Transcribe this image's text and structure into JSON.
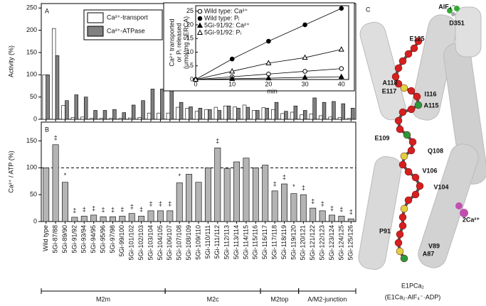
{
  "chart_data": [
    {
      "type": "bar",
      "panel": "A",
      "ylabel": "Activity   (%)",
      "ylim": [
        0,
        260
      ],
      "yticks": [
        0,
        50,
        100,
        150,
        200,
        250
      ],
      "series": [
        {
          "name": "Ca²⁺-transport",
          "color": "#ffffff",
          "values": [
            100,
            204,
            31,
            4,
            5,
            2,
            2,
            2,
            2,
            3,
            4,
            14,
            14,
            14,
            27,
            25,
            18,
            22,
            27,
            30,
            28,
            32,
            20,
            26,
            22,
            13,
            16,
            10,
            12,
            8,
            5,
            4,
            2
          ]
        },
        {
          "name": "Ca²⁺-ATPase",
          "color": "#808080",
          "values": [
            100,
            143,
            42,
            55,
            50,
            20,
            20,
            22,
            15,
            32,
            42,
            68,
            68,
            68,
            38,
            28,
            25,
            22,
            20,
            30,
            25,
            27,
            20,
            25,
            38,
            18,
            30,
            20,
            48,
            38,
            40,
            35,
            25
          ]
        }
      ]
    },
    {
      "type": "bar",
      "panel": "B",
      "ylabel": "Ca²⁺ / ATP  (%)",
      "ylim": [
        0,
        185
      ],
      "yticks": [
        0,
        50,
        100,
        150
      ],
      "reference_line": 100,
      "color": "#b4b4b4",
      "categories": [
        "Wild type",
        "5Gi-87/88",
        "5Gi-89/90",
        "5Gi-91/92",
        "5Gi-93/94",
        "5Gi-94/95",
        "5Gi-95/96",
        "5Gi-97/98",
        "5Gi-99/100",
        "5Gi-101/102",
        "5Gi-102/103",
        "5Gi-103/104",
        "5Gi-104/105",
        "5Gi-106/107",
        "5Gi-107/108",
        "5Gi-108/109",
        "5Gi-109/110",
        "5Gi-110/111",
        "5Gi-111/112",
        "5Gi-112/113",
        "5Gi-113/114",
        "5Gi-114/115",
        "5Gi-115/116",
        "5Gi-116/117",
        "5Gi-117/118",
        "5Gi-118/119",
        "5Gi-119/120",
        "5Gi-120/121",
        "5Gi-121/122",
        "5Gi-122/123",
        "5Gi-123/124",
        "5Gi-124/125",
        "5Gi-125/126"
      ],
      "values": [
        100,
        143,
        73,
        8,
        10,
        12,
        9,
        9,
        10,
        15,
        10,
        20,
        20,
        20,
        72,
        88,
        73,
        100,
        137,
        99,
        111,
        118,
        100,
        105,
        57,
        70,
        52,
        50,
        25,
        20,
        12,
        10,
        5
      ],
      "markers": [
        null,
        "‡",
        "*",
        "‡",
        "‡",
        "‡",
        "‡",
        "‡",
        "‡",
        "‡",
        "‡",
        "‡",
        "‡",
        "‡",
        "*",
        null,
        null,
        null,
        "‡",
        null,
        null,
        null,
        null,
        null,
        "‡",
        "‡",
        "*",
        "‡",
        "‡",
        "‡",
        "‡",
        "‡",
        "‡"
      ],
      "groups": [
        {
          "label": "M2m",
          "first": "Wild type",
          "last": "5Gi-104/105"
        },
        {
          "label": "M2c",
          "first": "5Gi-106/107",
          "last": "5Gi-115/116"
        },
        {
          "label": "M2top",
          "first": "5Gi-116/117",
          "last": "5Gi-119/120"
        },
        {
          "label": "A/M2-junction",
          "first": "5Gi-120/121",
          "last": "5Gi-125/126"
        }
      ]
    },
    {
      "type": "line",
      "xlabel": "min",
      "ylabel": [
        "Ca²⁺ transported",
        "or Pᵢ released",
        "(μmol/mg SERCA)"
      ],
      "x": [
        0,
        10,
        20,
        30,
        40
      ],
      "xlim": [
        0,
        42
      ],
      "xticks": [
        0,
        10,
        20,
        30,
        40
      ],
      "ylim": [
        0,
        27
      ],
      "yticks": [
        0,
        5,
        10,
        15,
        20,
        25
      ],
      "series": [
        {
          "name": "Wild type: Ca²⁺",
          "color": "#000000",
          "marker": "open-circle",
          "values": [
            0,
            1,
            2,
            3,
            4
          ]
        },
        {
          "name": "Wild type: Pᵢ",
          "color": "#000000",
          "marker": "circle",
          "values": [
            0,
            7.5,
            14,
            20,
            26
          ]
        },
        {
          "name": "5Gi-91/92: Ca²⁺",
          "color": "#000000",
          "marker": "triangle",
          "values": [
            0,
            0.3,
            0.5,
            0.8,
            1
          ]
        },
        {
          "name": "5Gi-91/92: Pᵢ",
          "color": "#000000",
          "marker": "open-triangle",
          "values": [
            0,
            3,
            6,
            8,
            11
          ]
        }
      ]
    }
  ],
  "structure": {
    "panel": "C",
    "labels": [
      {
        "text": "AlF₄⁻",
        "color": "#222222"
      },
      {
        "text": "D351",
        "color": "#222222"
      },
      {
        "text": "E125",
        "color": "#d0202a"
      },
      {
        "text": "A118",
        "color": "#d0202a"
      },
      {
        "text": "E117",
        "color": "#a0701a"
      },
      {
        "text": "I116",
        "color": "#a0701a"
      },
      {
        "text": "A115",
        "color": "#1a8a3a"
      },
      {
        "text": "E109",
        "color": "#1a8a3a"
      },
      {
        "text": "Q108",
        "color": "#a0701a"
      },
      {
        "text": "V106",
        "color": "#a0701a"
      },
      {
        "text": "V104",
        "color": "#d0202a"
      },
      {
        "text": "P91",
        "color": "#d0202a"
      },
      {
        "text": "V89",
        "color": "#a0701a"
      },
      {
        "text": "A87",
        "color": "#1a8a3a"
      },
      {
        "text": "2Ca²⁺",
        "color": "#b040b0"
      }
    ],
    "caption": [
      "E1PCa₂",
      "(E1Ca₂·AlF₄⁻·ADP)"
    ]
  }
}
